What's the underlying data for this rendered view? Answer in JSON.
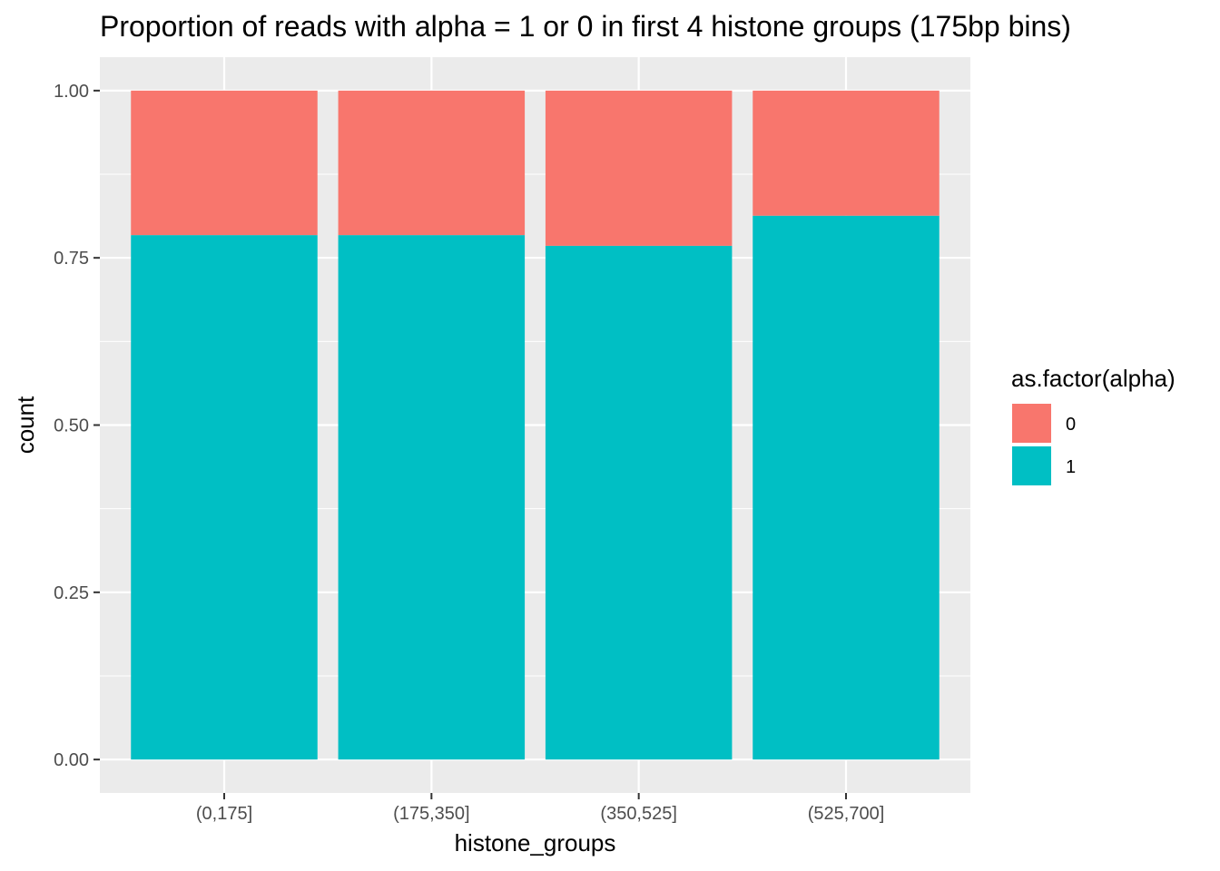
{
  "chart_data": {
    "type": "bar",
    "stacked": true,
    "title": "Proportion of reads with alpha = 1 or 0 in first 4 histone groups (175bp bins)",
    "xlabel": "histone_groups",
    "ylabel": "count",
    "categories": [
      "(0,175]",
      "(175,350]",
      "(350,525]",
      "(525,700]"
    ],
    "series": [
      {
        "name": "1",
        "color": "#00BFC4",
        "values": [
          0.784,
          0.784,
          0.768,
          0.813
        ]
      },
      {
        "name": "0",
        "color": "#F8766D",
        "values": [
          0.216,
          0.216,
          0.232,
          0.187
        ]
      }
    ],
    "ylim": [
      -0.05,
      1.05
    ],
    "yticks": [
      0.0,
      0.25,
      0.5,
      0.75,
      1.0
    ],
    "ytick_labels": [
      "0.00",
      "0.25",
      "0.50",
      "0.75",
      "1.00"
    ],
    "grid": true,
    "legend": {
      "title": "as.factor(alpha)",
      "placement": "right",
      "entries": [
        {
          "label": "0",
          "color": "#F8766D"
        },
        {
          "label": "1",
          "color": "#00BFC4"
        }
      ]
    },
    "colors": {
      "panel": "#EBEBEB",
      "grid": "#FFFFFF",
      "tick": "#333333"
    }
  }
}
